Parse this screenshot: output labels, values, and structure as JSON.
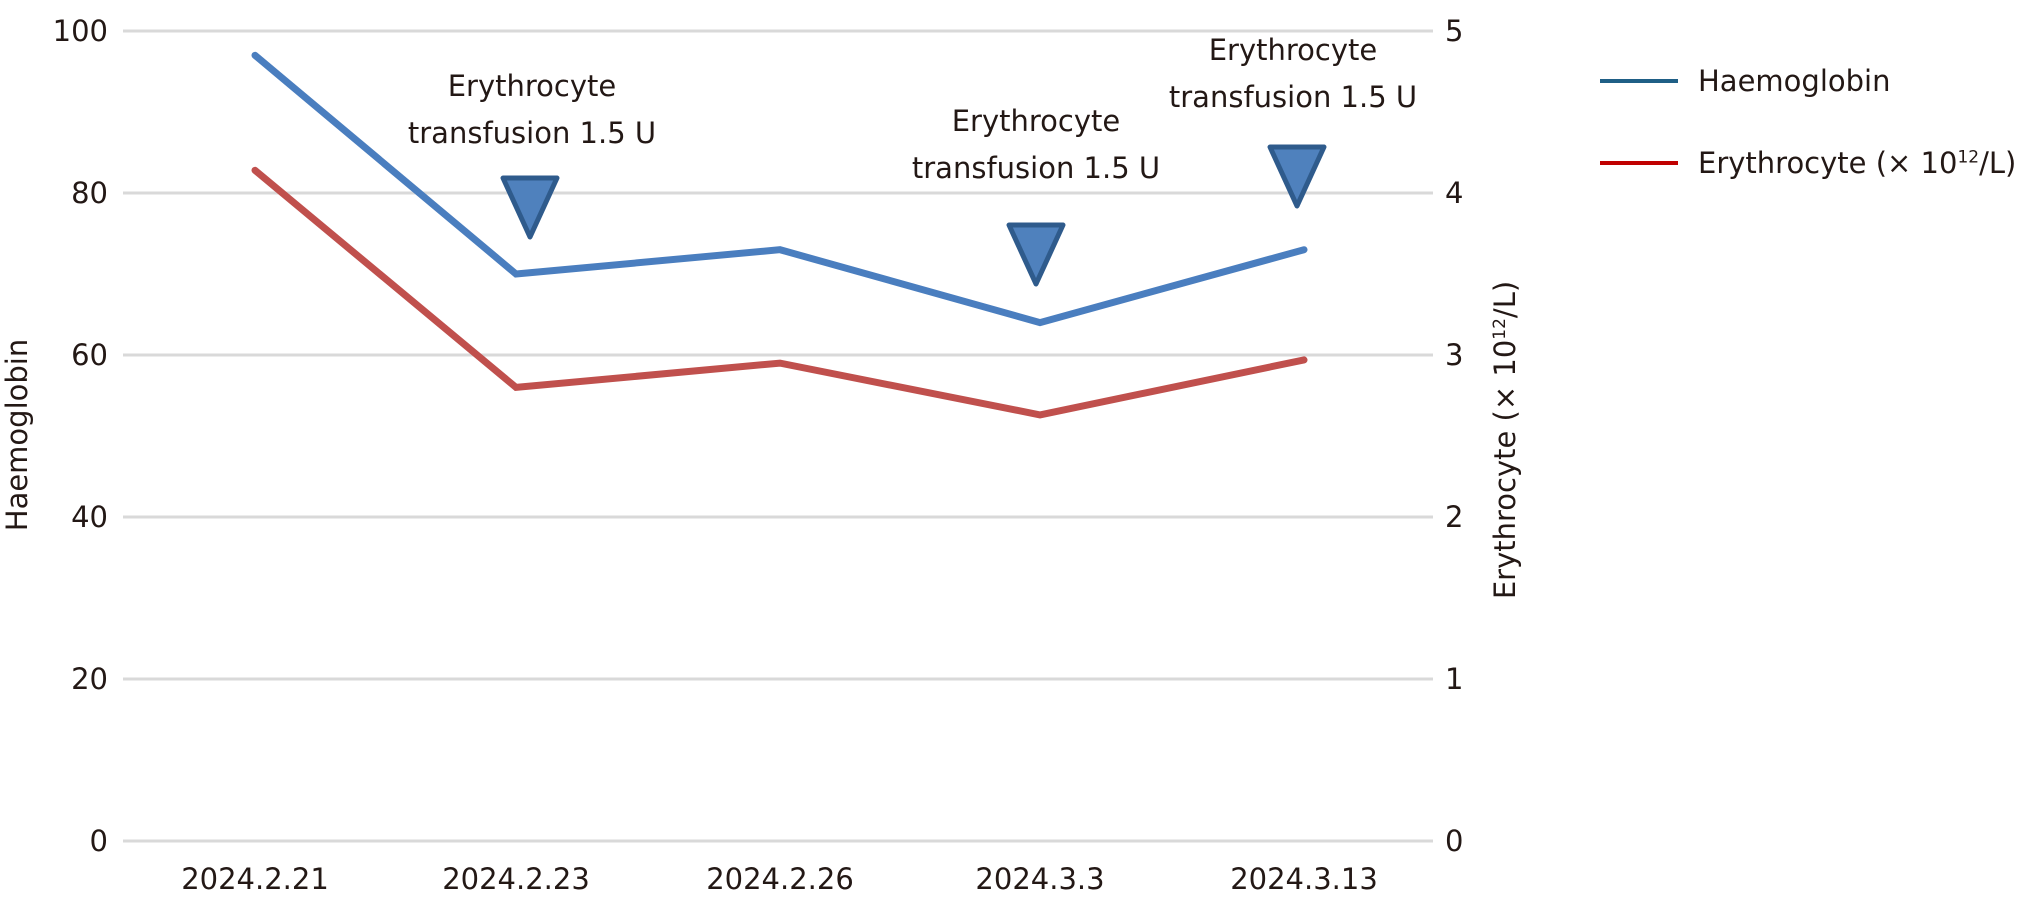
{
  "chart_data": {
    "type": "line",
    "title": "",
    "categories": [
      "2024.2.21",
      "2024.2.23",
      "2024.2.26",
      "2024.3.3",
      "2024.3.13"
    ],
    "series": [
      {
        "name": "Haemoglobin",
        "axis": "left",
        "color": "#4a7ebf",
        "legend_color": "#1f5f86",
        "values": [
          97,
          70,
          73,
          64,
          73
        ]
      },
      {
        "name": "Erythrocyte (× 10^12/L)",
        "axis": "right",
        "color": "#c0504d",
        "legend_color": "#c00000",
        "values": [
          4.14,
          2.8,
          2.95,
          2.63,
          2.97
        ]
      }
    ],
    "xlabel": "",
    "ylabel": "Haemoglobin",
    "ylabel_right": "Erythrocyte (× 10^12/L)",
    "ylim": [
      0,
      100
    ],
    "ylim_right": [
      0,
      5
    ],
    "yticks": [
      0,
      20,
      40,
      60,
      80,
      100
    ],
    "yticks_right": [
      0,
      1,
      2,
      3,
      4,
      5
    ],
    "grid": true,
    "legend_position": "right-top",
    "annotations": [
      {
        "category": "2024.2.23",
        "marker": "down-triangle",
        "text": [
          "Erythrocyte",
          "transfusion 1.5 U"
        ]
      },
      {
        "category": "2024.3.3",
        "marker": "down-triangle",
        "text": [
          "Erythrocyte",
          "transfusion 1.5 U"
        ]
      },
      {
        "category": "2024.3.13",
        "marker": "down-triangle",
        "text": [
          "Erythrocyte",
          "transfusion 1.5 U"
        ]
      }
    ]
  },
  "legend": {
    "items": [
      {
        "label": "Haemoglobin"
      },
      {
        "label_main": "Erythrocyte (× 10",
        "label_sup": "12",
        "label_tail": "/L)"
      }
    ]
  },
  "axes": {
    "left_title": "Haemoglobin",
    "right_title_main": "Erythrocyte (× 10",
    "right_title_sup": "12",
    "right_title_tail": "/L)"
  }
}
